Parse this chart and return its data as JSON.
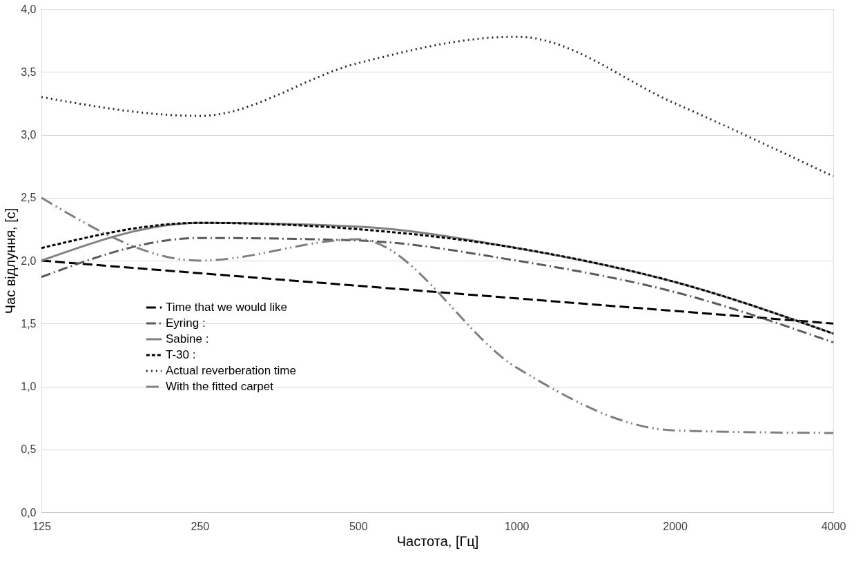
{
  "chart_data": {
    "type": "line",
    "xlabel": "Частота, [Гц]",
    "ylabel": "Час відлуння, [с]",
    "categories": [
      "125",
      "250",
      "500",
      "1000",
      "2000",
      "4000"
    ],
    "series": [
      {
        "name": "Time that we would like",
        "color": "#000000",
        "line_style": "dashed",
        "values": [
          2.0,
          1.9,
          1.8,
          1.7,
          1.6,
          1.5
        ]
      },
      {
        "name": "Eyring :",
        "color": "#595959",
        "line_style": "dashdot",
        "values": [
          1.87,
          2.18,
          2.16,
          2.0,
          1.75,
          1.35
        ]
      },
      {
        "name": "Sabine :",
        "color": "#808080",
        "line_style": "solid",
        "values": [
          2.0,
          2.3,
          2.27,
          2.1,
          1.83,
          1.42
        ]
      },
      {
        "name": "T-30   :",
        "color": "#000000",
        "line_style": "shortdash",
        "values": [
          2.1,
          2.3,
          2.25,
          2.1,
          1.83,
          1.42
        ]
      },
      {
        "name": "Actual reverberation time",
        "color": "#262626",
        "line_style": "dotted",
        "values": [
          3.3,
          3.15,
          3.57,
          3.78,
          3.25,
          2.67
        ]
      },
      {
        "name": "With the fitted carpet",
        "color": "#7f7f7f",
        "line_style": "dashdotdot",
        "values": [
          2.5,
          2.0,
          2.17,
          1.15,
          0.65,
          0.63
        ]
      }
    ],
    "ylim": [
      0,
      4
    ],
    "yticks": [
      {
        "value": 0,
        "label": "0,0"
      },
      {
        "value": 0.5,
        "label": "0,5"
      },
      {
        "value": 1,
        "label": "1,0"
      },
      {
        "value": 1.5,
        "label": "1,5"
      },
      {
        "value": 2,
        "label": "2,0"
      },
      {
        "value": 2.5,
        "label": "2,5"
      },
      {
        "value": 3,
        "label": "3,0"
      },
      {
        "value": 3.5,
        "label": "3,5"
      },
      {
        "value": 4,
        "label": "4,0"
      }
    ],
    "grid": "y",
    "legend": "bottom left"
  }
}
